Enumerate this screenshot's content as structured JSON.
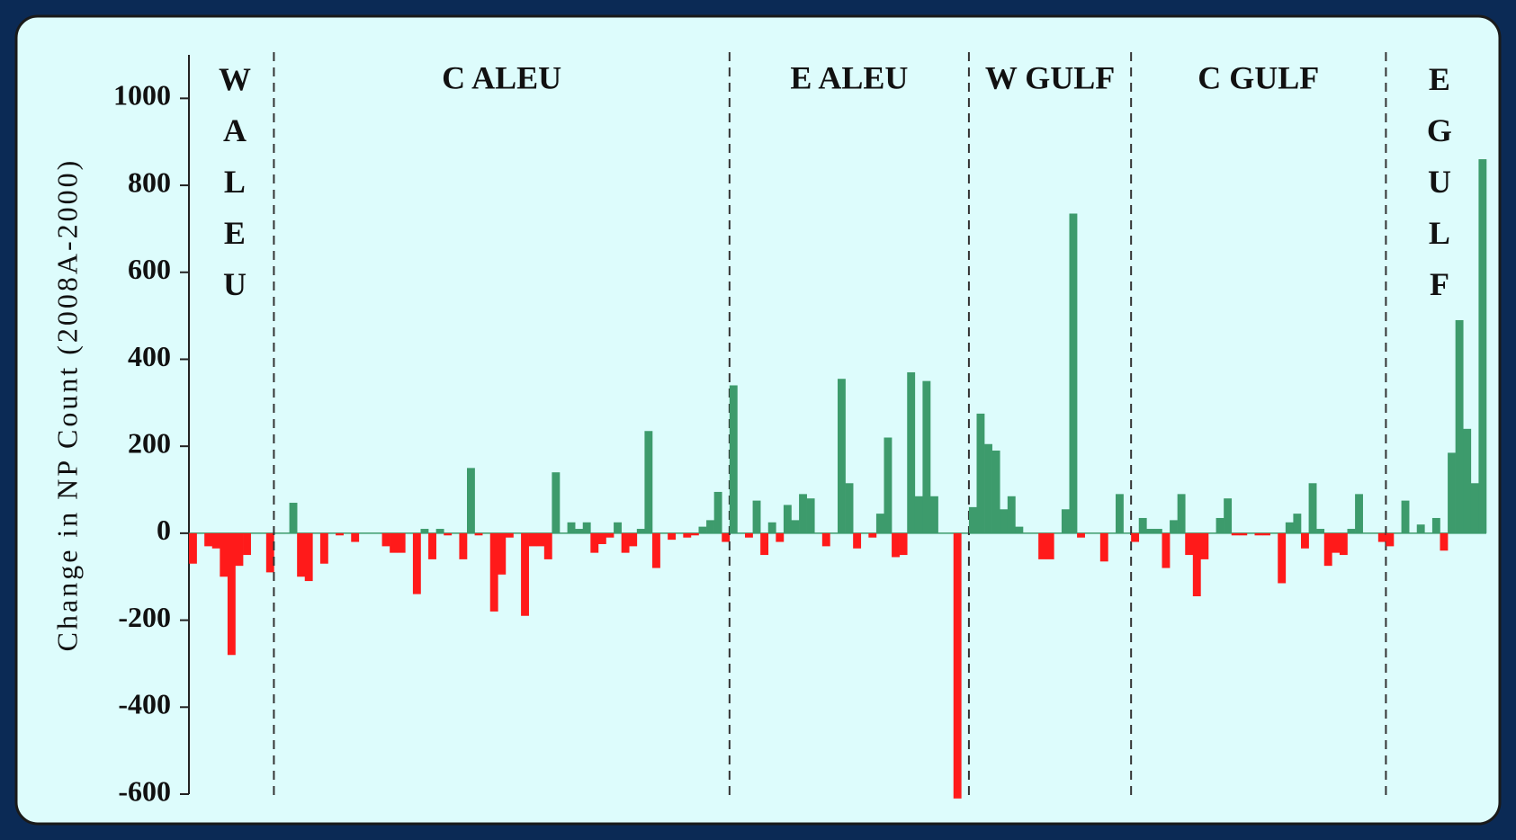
{
  "chart_data": {
    "type": "bar",
    "y_label": "Change in NP Count (2008A-2000)",
    "ylim": [
      -600,
      1100
    ],
    "yticks": [
      -600,
      -400,
      -200,
      0,
      200,
      400,
      600,
      800,
      1000
    ],
    "positive_color": "#3d9b6c",
    "negative_color": "#ff1a1a",
    "groups": [
      {
        "label": "WALEU",
        "orientation": "vertical",
        "values": [
          -70,
          0,
          -30,
          -35,
          -100,
          -280,
          -75,
          -50,
          0,
          0,
          -90
        ]
      },
      {
        "label": "C ALEU",
        "orientation": "horizontal",
        "values": [
          0,
          0,
          70,
          -100,
          -110,
          0,
          -70,
          0,
          -5,
          0,
          -20,
          0,
          0,
          0,
          -30,
          -45,
          -45,
          0,
          -140,
          10,
          -60,
          10,
          -5,
          0,
          -60,
          150,
          -5,
          0,
          -180,
          -95,
          -10,
          0,
          -190,
          -30,
          -30,
          -60,
          140,
          0,
          25,
          10,
          25,
          -45,
          -25,
          -10,
          25,
          -45,
          -30,
          10,
          235,
          -80,
          0,
          -15,
          0,
          -10,
          -5,
          15,
          30,
          95,
          -20
        ]
      },
      {
        "label": "E ALEU",
        "orientation": "horizontal",
        "values": [
          340,
          0,
          -10,
          75,
          -50,
          25,
          -20,
          65,
          30,
          90,
          80,
          0,
          -30,
          0,
          355,
          115,
          -35,
          0,
          -10,
          45,
          220,
          -55,
          -50,
          370,
          85,
          350,
          85,
          0,
          0,
          -610,
          0
        ]
      },
      {
        "label": "W GULF",
        "orientation": "horizontal",
        "values": [
          60,
          275,
          205,
          190,
          55,
          85,
          15,
          0,
          0,
          -60,
          -60,
          0,
          55,
          735,
          -10,
          0,
          0,
          -65,
          0,
          90,
          0
        ]
      },
      {
        "label": "C GULF",
        "orientation": "horizontal",
        "values": [
          -20,
          35,
          10,
          10,
          -80,
          30,
          90,
          -50,
          -145,
          -60,
          0,
          35,
          80,
          -5,
          -5,
          0,
          -5,
          -5,
          0,
          -115,
          25,
          45,
          -35,
          115,
          10,
          -75,
          -45,
          -50,
          10,
          90,
          0,
          0,
          -20
        ]
      },
      {
        "label": "EGULF",
        "orientation": "vertical",
        "values": [
          -30,
          0,
          75,
          0,
          20,
          0,
          35,
          -40,
          185,
          490,
          240,
          115,
          860
        ]
      }
    ]
  }
}
